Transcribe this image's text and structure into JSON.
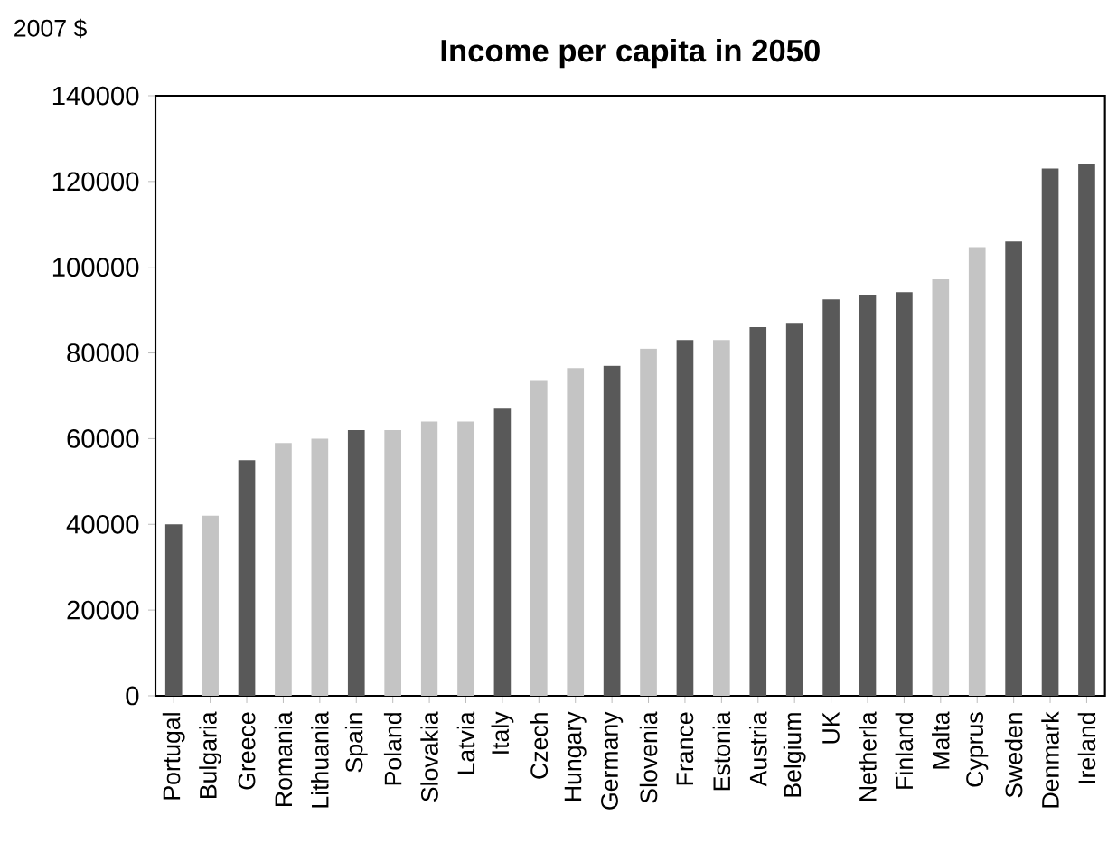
{
  "chart_data": {
    "type": "bar",
    "title": "Income per capita in 2050",
    "ylabel": "2007 $",
    "categories": [
      "Portugal",
      "Bulgaria",
      "Greece",
      "Romania",
      "Lithuania",
      "Spain",
      "Poland",
      "Slovakia",
      "Latvia",
      "Italy",
      "Czech",
      "Hungary",
      "Germany",
      "Slovenia",
      "France",
      "Estonia",
      "Austria",
      "Belgium",
      "UK",
      "Netherla",
      "Finland",
      "Malta",
      "Cyprus",
      "Sweden",
      "Denmark",
      "Ireland"
    ],
    "values": [
      40000,
      42000,
      55000,
      59000,
      60000,
      62000,
      62000,
      64000,
      64000,
      67000,
      73500,
      76500,
      77000,
      81000,
      83000,
      83000,
      86000,
      87000,
      92500,
      93400,
      94200,
      97200,
      104700,
      106000,
      123000,
      124000
    ],
    "colors": [
      "#595959",
      "#c4c4c4",
      "#595959",
      "#c4c4c4",
      "#c4c4c4",
      "#595959",
      "#c4c4c4",
      "#c4c4c4",
      "#c4c4c4",
      "#595959",
      "#c4c4c4",
      "#c4c4c4",
      "#595959",
      "#c4c4c4",
      "#595959",
      "#c4c4c4",
      "#595959",
      "#595959",
      "#595959",
      "#595959",
      "#595959",
      "#c4c4c4",
      "#c4c4c4",
      "#595959",
      "#595959",
      "#595959"
    ],
    "ylim": [
      0,
      140000
    ],
    "yticks": [
      0,
      20000,
      40000,
      60000,
      80000,
      100000,
      120000,
      140000
    ],
    "grid": false
  }
}
